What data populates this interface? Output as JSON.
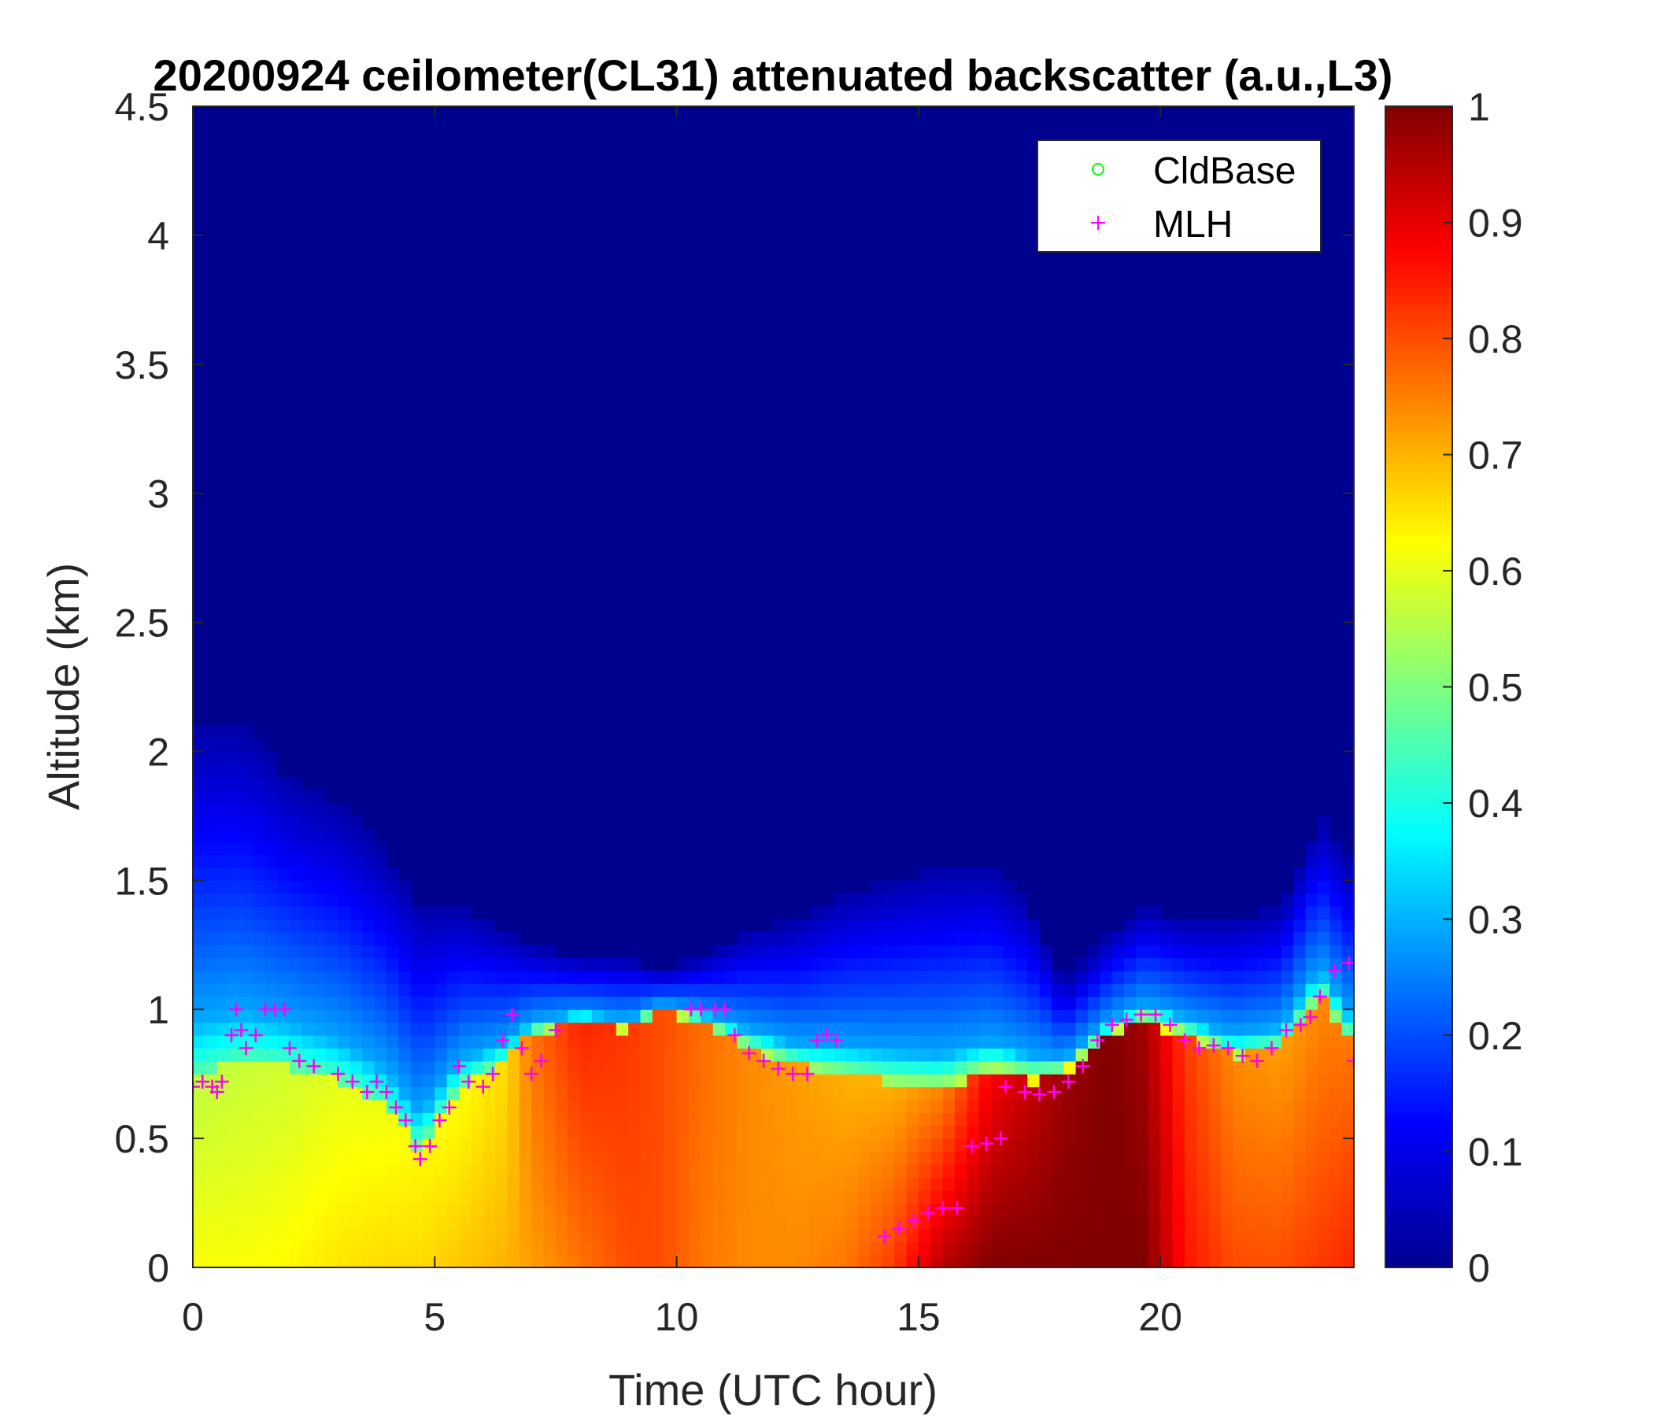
{
  "chart_data": {
    "type": "heatmap",
    "title": "20200924 ceilometer(CL31) attenuated backscatter (a.u.,L3)",
    "xlabel": "Time (UTC hour)",
    "ylabel": "Altitude (km)",
    "xlim": [
      0,
      24
    ],
    "ylim": [
      0,
      4.5
    ],
    "xticks": [
      0,
      5,
      10,
      15,
      20
    ],
    "xtick_labels": [
      "0",
      "5",
      "10",
      "15",
      "20"
    ],
    "yticks": [
      0,
      0.5,
      1,
      1.5,
      2,
      2.5,
      3,
      3.5,
      4,
      4.5
    ],
    "ytick_labels": [
      "0",
      "0.5",
      "1",
      "1.5",
      "2",
      "2.5",
      "3",
      "3.5",
      "4",
      "4.5"
    ],
    "colorbar": {
      "colormap": "jet",
      "clim": [
        0,
        1
      ],
      "ticks": [
        0,
        0.1,
        0.2,
        0.3,
        0.4,
        0.5,
        0.6,
        0.7,
        0.8,
        0.9,
        1
      ],
      "tick_labels": [
        "0",
        "0.1",
        "0.2",
        "0.3",
        "0.4",
        "0.5",
        "0.6",
        "0.7",
        "0.8",
        "0.9",
        "1"
      ]
    },
    "heatmap_profile": {
      "description_units": "time in UTC hours, heights in km, values in a.u.",
      "times": [
        0,
        1,
        2,
        3,
        4,
        4.7,
        5.5,
        6.5,
        7,
        8,
        9,
        9.7,
        10.5,
        11.5,
        12.5,
        13.5,
        14.5,
        15.5,
        16.5,
        17.3,
        18,
        19,
        19.7,
        20.5,
        21.5,
        22.5,
        23.3,
        24
      ],
      "aerosol_top_km": [
        2.1,
        2.1,
        1.9,
        1.8,
        1.6,
        1.4,
        1.4,
        1.3,
        1.25,
        1.2,
        1.2,
        1.15,
        1.2,
        1.3,
        1.35,
        1.45,
        1.5,
        1.55,
        1.55,
        1.4,
        1.1,
        1.3,
        1.4,
        1.35,
        1.35,
        1.4,
        1.75,
        1.55
      ],
      "layer_top_km": [
        0.75,
        0.8,
        0.78,
        0.72,
        0.62,
        0.45,
        0.7,
        0.8,
        0.9,
        0.95,
        0.92,
        1.0,
        0.95,
        0.85,
        0.78,
        0.75,
        0.72,
        0.7,
        0.75,
        0.72,
        0.75,
        0.9,
        0.95,
        0.9,
        0.82,
        0.85,
        1.05,
        0.85
      ],
      "layer_value": [
        0.56,
        0.57,
        0.58,
        0.6,
        0.61,
        0.63,
        0.62,
        0.66,
        0.76,
        0.84,
        0.82,
        0.8,
        0.77,
        0.74,
        0.72,
        0.7,
        0.7,
        0.74,
        0.88,
        0.93,
        0.97,
        1.0,
        0.96,
        0.82,
        0.74,
        0.72,
        0.74,
        0.76
      ],
      "surface_value": [
        0.62,
        0.62,
        0.63,
        0.65,
        0.66,
        0.66,
        0.68,
        0.7,
        0.72,
        0.76,
        0.8,
        0.8,
        0.76,
        0.74,
        0.74,
        0.76,
        0.82,
        0.95,
        1.0,
        1.0,
        1.0,
        1.0,
        1.0,
        0.86,
        0.8,
        0.8,
        0.82,
        0.84
      ]
    },
    "series": [
      {
        "name": "CldBase",
        "marker": "o",
        "color": "#00ff00",
        "x": [],
        "y": []
      },
      {
        "name": "MLH",
        "marker": "+",
        "color": "#ff00ff",
        "x": [
          0.0,
          0.2,
          0.4,
          0.5,
          0.6,
          0.8,
          0.9,
          1.0,
          1.1,
          1.3,
          1.5,
          1.7,
          1.9,
          2.0,
          2.2,
          2.5,
          3.0,
          3.3,
          3.6,
          3.8,
          4.0,
          4.2,
          4.4,
          4.6,
          4.7,
          4.9,
          5.1,
          5.3,
          5.5,
          5.7,
          6.0,
          6.2,
          6.4,
          6.6,
          6.8,
          7.0,
          7.2,
          7.5,
          10.3,
          10.5,
          10.8,
          11.0,
          11.2,
          11.5,
          11.8,
          12.1,
          12.4,
          12.7,
          12.9,
          13.1,
          13.3,
          14.3,
          14.6,
          14.9,
          15.2,
          15.5,
          15.8,
          16.1,
          16.4,
          16.7,
          16.8,
          17.2,
          17.5,
          17.8,
          18.1,
          18.4,
          18.7,
          19.0,
          19.3,
          19.6,
          19.9,
          20.2,
          20.5,
          20.8,
          21.1,
          21.4,
          21.7,
          22.0,
          22.3,
          22.6,
          22.9,
          23.1,
          23.3,
          23.6,
          23.9,
          24.0
        ],
        "y": [
          0.7,
          0.72,
          0.7,
          0.68,
          0.72,
          0.9,
          1.0,
          0.92,
          0.85,
          0.9,
          1.0,
          1.0,
          1.0,
          0.85,
          0.8,
          0.78,
          0.75,
          0.72,
          0.68,
          0.72,
          0.68,
          0.62,
          0.57,
          0.47,
          0.42,
          0.47,
          0.57,
          0.62,
          0.78,
          0.72,
          0.7,
          0.75,
          0.88,
          0.98,
          0.85,
          0.75,
          0.8,
          0.92,
          1.0,
          1.0,
          1.0,
          1.0,
          0.9,
          0.83,
          0.8,
          0.77,
          0.75,
          0.75,
          0.88,
          0.9,
          0.88,
          0.12,
          0.15,
          0.18,
          0.21,
          0.23,
          0.23,
          0.47,
          0.48,
          0.5,
          0.7,
          0.68,
          0.67,
          0.68,
          0.72,
          0.78,
          0.88,
          0.94,
          0.96,
          0.98,
          0.98,
          0.94,
          0.88,
          0.85,
          0.86,
          0.85,
          0.82,
          0.8,
          0.85,
          0.92,
          0.94,
          0.97,
          1.05,
          1.15,
          1.18,
          0.8
        ]
      }
    ],
    "legend": {
      "placement": "top-right",
      "entries": [
        "CldBase",
        "MLH"
      ]
    }
  }
}
